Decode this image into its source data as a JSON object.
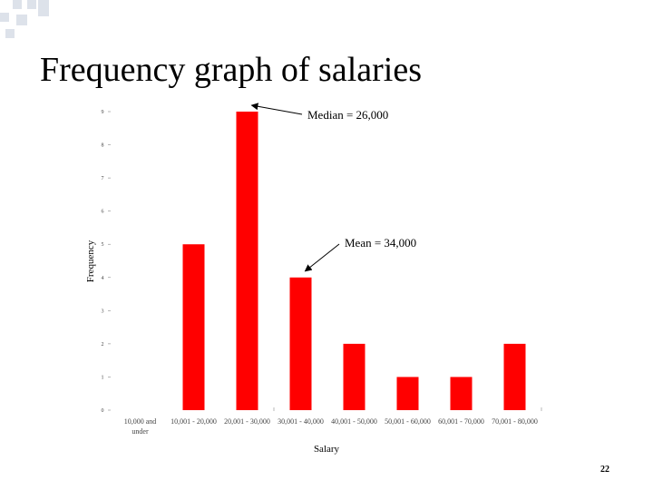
{
  "slide": {
    "title": "Frequency graph of salaries",
    "page_number": "22"
  },
  "chart_data": {
    "type": "bar",
    "categories": [
      "10,000 and under",
      "10,001 - 20,000",
      "20,001 - 30,000",
      "30,001 - 40,000",
      "40,001 - 50,000",
      "50,001 - 60,000",
      "60,001 - 70,000",
      "70,001 - 80,000"
    ],
    "values": [
      0,
      5,
      9,
      4,
      2,
      1,
      1,
      2
    ],
    "xlabel": "Salary",
    "ylabel": "Frequency",
    "ylim": [
      0,
      9
    ],
    "yticks": [
      "0",
      "1",
      "2",
      "3",
      "4",
      "5",
      "6",
      "7",
      "8",
      "9"
    ],
    "bar_color": "#ff0000",
    "grid": false,
    "annotations": [
      {
        "text": "Median = 26,000",
        "category_index": 2
      },
      {
        "text": "Mean = 34,000",
        "category_index": 3
      }
    ]
  },
  "colors": {
    "background": "#ffffff",
    "decor": "#dde2ea"
  }
}
